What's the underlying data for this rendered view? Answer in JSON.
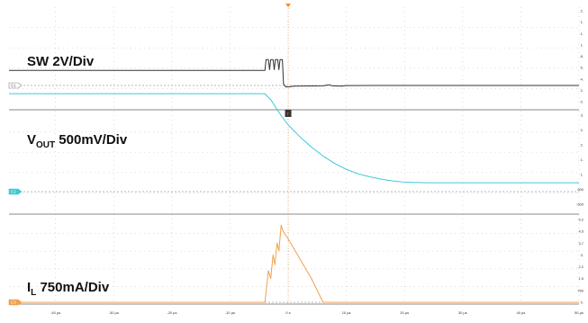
{
  "chart_data": {
    "type": "line",
    "time_axis": {
      "unit": "µs",
      "tick_labels": [
        "-40 µs",
        "-30 µs",
        "-20 µs",
        "-10 µs",
        "0 s",
        "10 µs",
        "20 µs",
        "30 µs",
        "40 µs",
        "50 µs"
      ],
      "tick_values": [
        -40,
        -30,
        -20,
        -10,
        0,
        10,
        20,
        30,
        40,
        50
      ],
      "range": [
        -48,
        50
      ]
    },
    "grid": true,
    "trigger_marker": "T",
    "channels": [
      {
        "marker": "C1",
        "label": "SW 2V/Div",
        "color": "#333333",
        "scale_ticks": [
          "2.",
          "1.",
          "1.",
          "1.",
          "8.",
          "6.",
          "4.",
          "2.",
          "0."
        ],
        "points": [
          [
            -48,
            2.1
          ],
          [
            -4,
            2.1
          ],
          [
            -3.8,
            3.6
          ],
          [
            -3.4,
            3.6
          ],
          [
            -3.2,
            2.2
          ],
          [
            -3.0,
            3.6
          ],
          [
            -2.6,
            3.6
          ],
          [
            -2.4,
            2.2
          ],
          [
            -2.2,
            3.6
          ],
          [
            -1.8,
            3.6
          ],
          [
            -1.6,
            2.2
          ],
          [
            -1.4,
            3.6
          ],
          [
            -1.0,
            3.6
          ],
          [
            -0.8,
            0.2
          ],
          [
            -0.4,
            -0.2
          ],
          [
            0,
            -0.2
          ],
          [
            1,
            -0.1
          ],
          [
            6,
            -0.05
          ],
          [
            7,
            0.1
          ],
          [
            7.6,
            -0.05
          ],
          [
            9,
            -0.1
          ],
          [
            10,
            -0.02
          ],
          [
            15,
            0
          ],
          [
            50,
            0
          ]
        ]
      },
      {
        "marker": "C2",
        "label_main": "V",
        "label_sub": "OUT",
        "label_tail": " 500mV/Div",
        "color": "#3cc8d8",
        "scale_ticks": [
          "3.",
          "2.",
          "2.",
          "1.",
          "1.",
          "500",
          "-500"
        ],
        "points": [
          [
            -48,
            3.3
          ],
          [
            -4,
            3.3
          ],
          [
            -3.8,
            3.25
          ],
          [
            -3,
            3.1
          ],
          [
            -2,
            2.8
          ],
          [
            -1,
            2.5
          ],
          [
            0,
            2.25
          ],
          [
            2,
            1.85
          ],
          [
            4,
            1.5
          ],
          [
            6,
            1.2
          ],
          [
            8,
            0.95
          ],
          [
            10,
            0.75
          ],
          [
            12,
            0.6
          ],
          [
            14,
            0.5
          ],
          [
            16,
            0.42
          ],
          [
            18,
            0.36
          ],
          [
            20,
            0.32
          ],
          [
            24,
            0.3
          ],
          [
            50,
            0.3
          ]
        ]
      },
      {
        "marker": "C3",
        "label_main": "I",
        "label_sub": "L",
        "label_tail": " 750mA/Div",
        "color": "#f0a050",
        "scale_ticks": [
          "5.2",
          "4.5",
          "3.7",
          "3.",
          "2.2",
          "1.5",
          "750",
          "0."
        ],
        "points": [
          [
            -48,
            0
          ],
          [
            -4,
            0
          ],
          [
            -3.4,
            1.6
          ],
          [
            -3.0,
            1.2
          ],
          [
            -2.6,
            2.4
          ],
          [
            -2.3,
            1.9
          ],
          [
            -1.9,
            3.0
          ],
          [
            -1.6,
            2.6
          ],
          [
            -1.2,
            3.9
          ],
          [
            -0.9,
            3.6
          ],
          [
            0,
            3.2
          ],
          [
            2,
            2.2
          ],
          [
            4,
            1.2
          ],
          [
            6,
            0
          ],
          [
            50,
            0
          ]
        ]
      }
    ]
  }
}
